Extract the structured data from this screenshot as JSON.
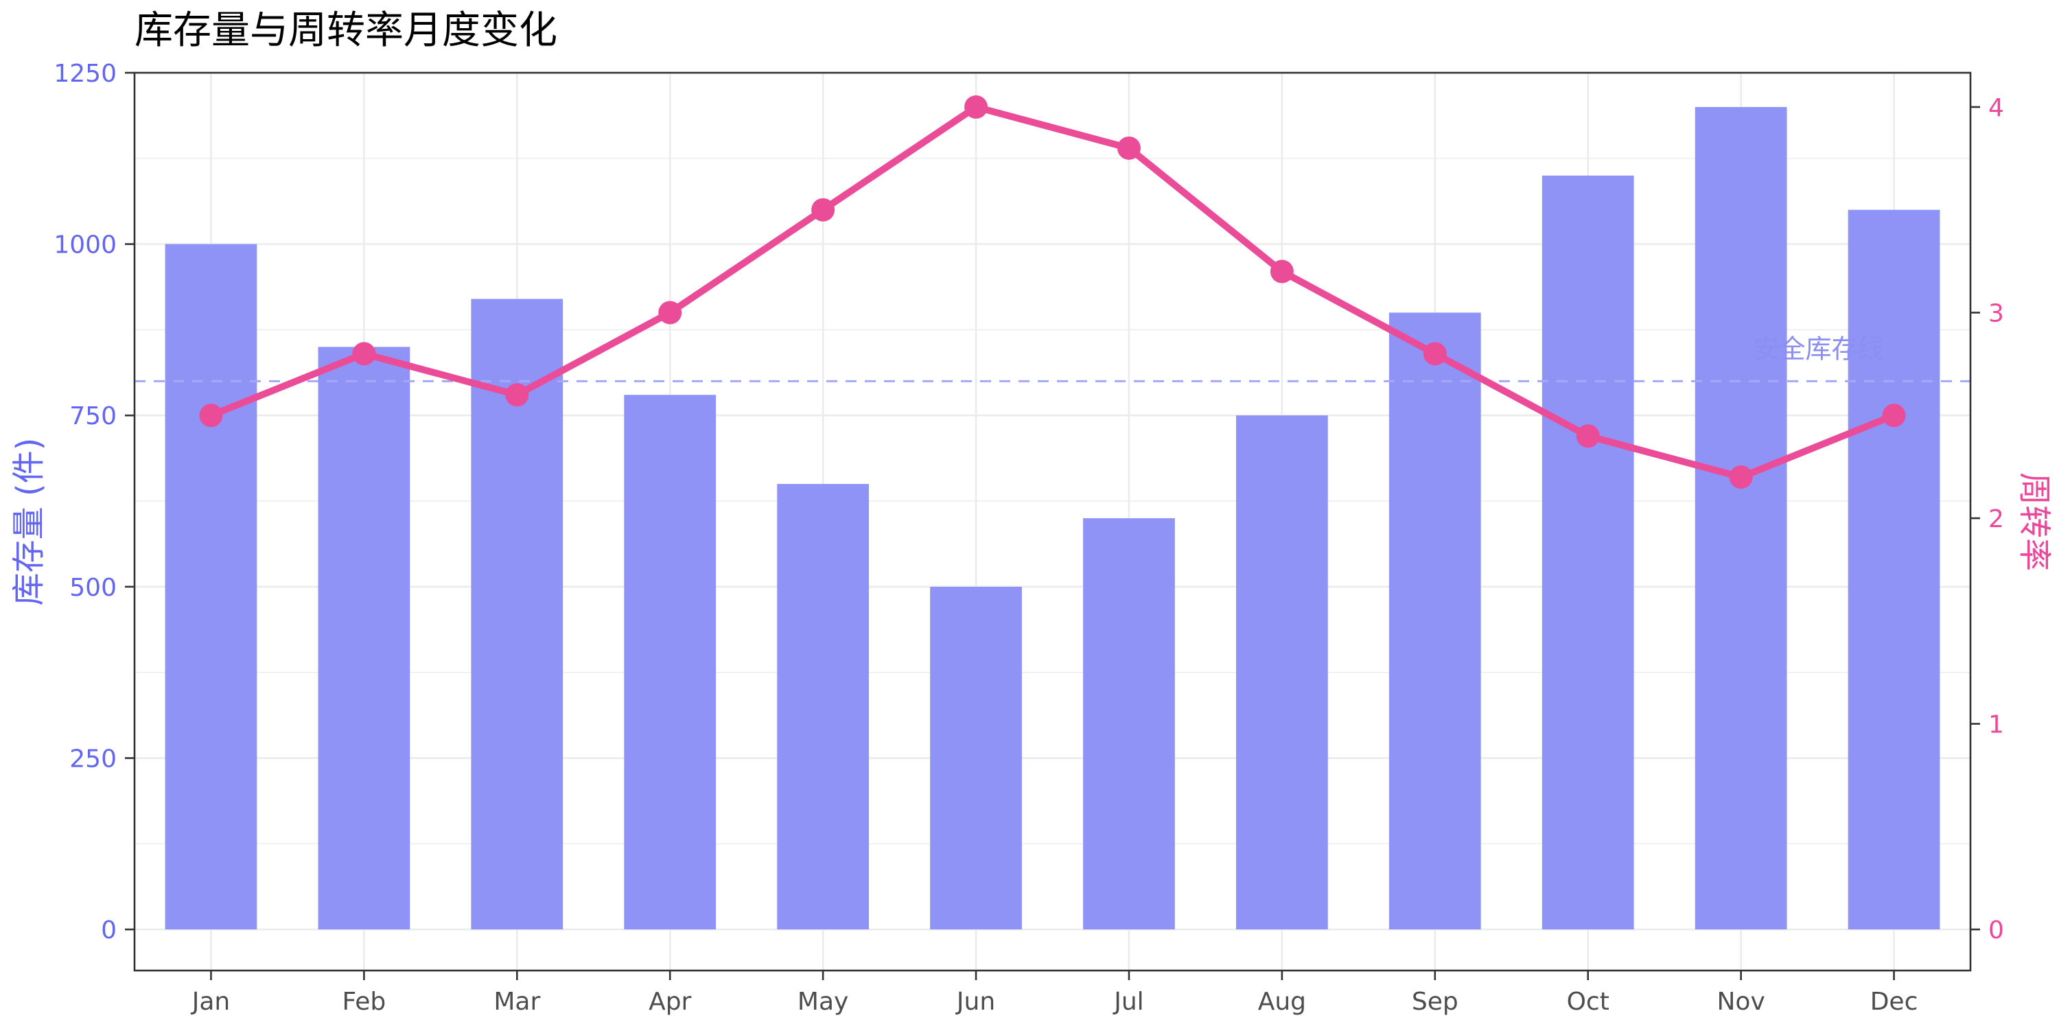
{
  "chart_data": {
    "type": "bar",
    "title": "库存量与周转率月度变化",
    "categories": [
      "Jan",
      "Feb",
      "Mar",
      "Apr",
      "May",
      "Jun",
      "Jul",
      "Aug",
      "Sep",
      "Oct",
      "Nov",
      "Dec"
    ],
    "series": [
      {
        "name": "库存量 (件)",
        "type": "bar",
        "axis": "left",
        "values": [
          1000,
          850,
          920,
          780,
          650,
          500,
          600,
          750,
          900,
          1100,
          1200,
          1050
        ]
      },
      {
        "name": "周转率",
        "type": "line",
        "axis": "right",
        "values": [
          2.5,
          2.8,
          2.6,
          3.0,
          3.5,
          4.0,
          3.8,
          3.2,
          2.8,
          2.4,
          2.2,
          2.5
        ]
      }
    ],
    "y_left": {
      "label": "库存量 (件)",
      "range": [
        -60,
        1250
      ],
      "ticks": [
        0,
        250,
        500,
        750,
        1000,
        1250
      ]
    },
    "y_right": {
      "label": "周转率",
      "ticks": [
        0,
        1,
        2,
        3,
        4
      ]
    },
    "reference_line": {
      "value": 800,
      "label": "安全库存线"
    },
    "grid": true,
    "legend": "none",
    "colors": {
      "bar": "#8f93f5",
      "line": "#ea4c98",
      "left_axis_text": "#6366f1",
      "right_axis_text": "#ec4899",
      "ref_line": "#a5a8f8",
      "ref_text": "#8b8ef2",
      "grid": "#ebebeb",
      "tick_label": "#4d4d4d",
      "title": "#000000"
    }
  }
}
